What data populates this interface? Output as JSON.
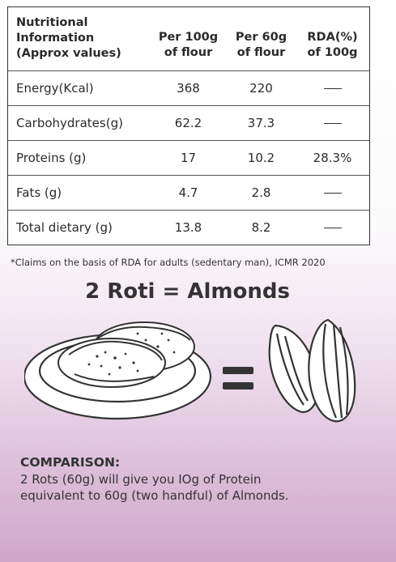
{
  "table": {
    "header_label_lines": [
      "Nutritional",
      "Information",
      "(Approx values)"
    ],
    "columns": [
      {
        "lines": [
          "Per 100g",
          "of flour"
        ]
      },
      {
        "lines": [
          "Per 60g",
          "of flour"
        ]
      },
      {
        "lines": [
          "RDA(%)",
          "of 100g"
        ]
      }
    ],
    "rows": [
      {
        "label": "Energy(Kcal)",
        "per100": "368",
        "per60": "220",
        "rda": "—"
      },
      {
        "label": "Carbohydrates(g)",
        "per100": "62.2",
        "per60": "37.3",
        "rda": "—"
      },
      {
        "label": "Proteins (g)",
        "per100": "17",
        "per60": "10.2",
        "rda": "28.3%"
      },
      {
        "label": "Fats (g)",
        "per100": "4.7",
        "per60": "2.8",
        "rda": "—"
      },
      {
        "label": "Total dietary (g)",
        "per100": "13.8",
        "per60": "8.2",
        "rda": "—"
      }
    ]
  },
  "footnote": "*Claims on the basis of RDA for adults (sedentary man), ICMR 2020",
  "headline": "2 Roti = Almonds",
  "comparison": {
    "title": "COMPARISON:",
    "text_lines": [
      "2 Rots (60g) will give you IOg of Protein",
      "equivalent to 60g (two handful) of Almonds."
    ]
  },
  "colors": {
    "background_bottom": "#cfa8cb",
    "text": "#2b2b2b"
  }
}
